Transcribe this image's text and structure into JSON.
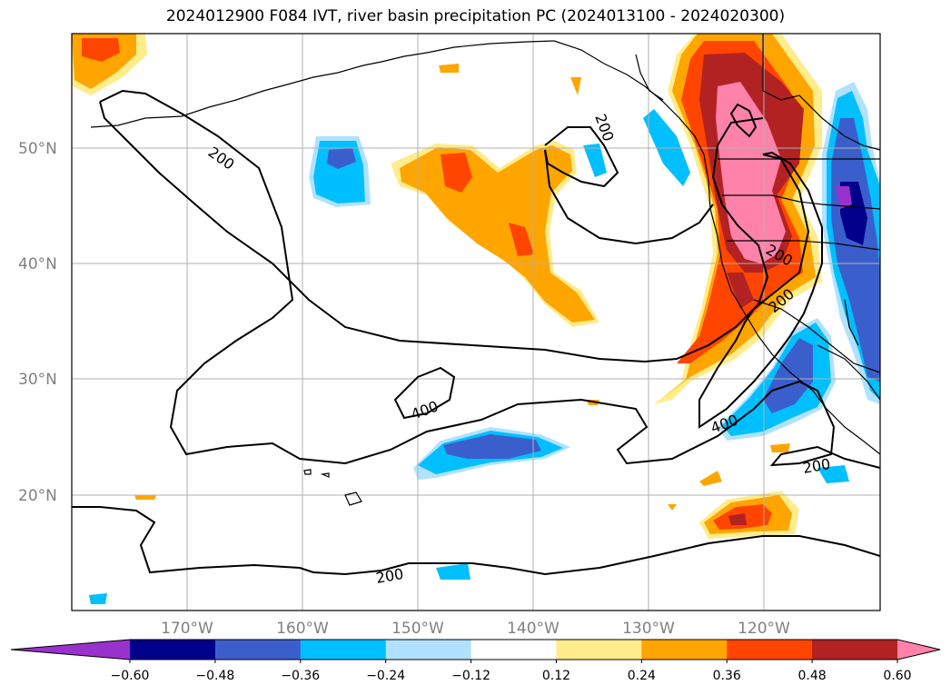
{
  "title": "2024012900 F084 IVT, river basin precipitation PC (2024013100 - 2024020300)",
  "map": {
    "lon_ticks": [
      "170°W",
      "160°W",
      "150°W",
      "140°W",
      "130°W",
      "120°W"
    ],
    "lat_ticks": [
      "50°N",
      "40°N",
      "30°N",
      "20°N"
    ],
    "lon_range": [
      -180,
      -110
    ],
    "lat_range": [
      10,
      60
    ],
    "gridlines": true
  },
  "contour_labels": [
    "200",
    "200",
    "200",
    "200",
    "400",
    "400",
    "200",
    "200"
  ],
  "colorbar": {
    "ticks": [
      "−0.60",
      "−0.48",
      "−0.36",
      "−0.24",
      "−0.12",
      "0.12",
      "0.24",
      "0.36",
      "0.48",
      "0.60"
    ],
    "colors": [
      "#9932cc",
      "#00008b",
      "#3a5fcd",
      "#00bfff",
      "#b0e2ff",
      "#ffffff",
      "#ffec8b",
      "#ffa500",
      "#ff4500",
      "#b22222",
      "#ff82ab"
    ],
    "extend": "both"
  },
  "chart_data": {
    "type": "heatmap",
    "title": "2024012900 F084 IVT, river basin precipitation PC (2024013100 - 2024020300)",
    "xlabel": "",
    "ylabel": "",
    "xlim": [
      -180,
      -110
    ],
    "ylim": [
      10,
      60
    ],
    "contour_levels_ivt": [
      200,
      400
    ],
    "color_levels": [
      -0.6,
      -0.48,
      -0.36,
      -0.24,
      -0.12,
      0.12,
      0.24,
      0.36,
      0.48,
      0.6
    ]
  }
}
